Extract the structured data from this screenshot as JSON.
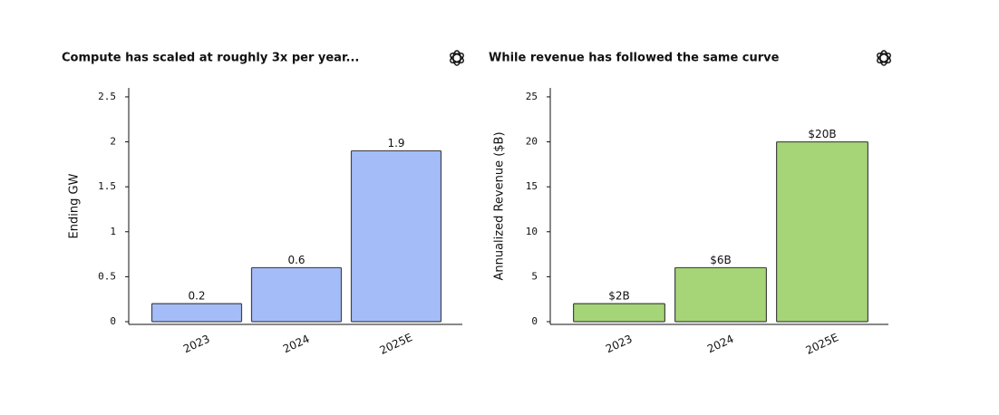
{
  "chart_data": [
    {
      "type": "bar",
      "title": "Compute has scaled at roughly 3x per year...",
      "y_label": "Ending GW",
      "categories": [
        "2023",
        "2024",
        "2025E"
      ],
      "values": [
        0.2,
        0.6,
        1.9
      ],
      "color": "#a4bcf8",
      "ylim": [
        0,
        2.6
      ],
      "yticks": [
        0,
        0.5,
        1,
        1.5,
        2,
        2.5
      ]
    },
    {
      "type": "bar",
      "title": "While revenue has followed the same curve",
      "y_label": "Annualized Revenue ($B)",
      "categories": [
        "2023",
        "2024",
        "2025E"
      ],
      "values": [
        2,
        6,
        20
      ],
      "value_labels": [
        "$2B",
        "$6B",
        "$20B"
      ],
      "color": "#a5d576",
      "ylim": [
        0,
        26
      ],
      "yticks": [
        0,
        5,
        10,
        15,
        20,
        25
      ]
    }
  ]
}
